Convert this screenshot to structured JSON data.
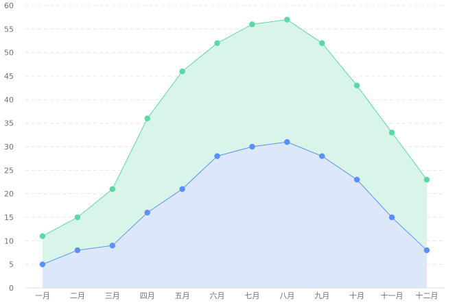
{
  "chart_data": {
    "type": "area",
    "categories": [
      "一月",
      "二月",
      "三月",
      "四月",
      "五月",
      "六月",
      "七月",
      "八月",
      "九月",
      "十月",
      "十一月",
      "十二月"
    ],
    "series": [
      {
        "values": [
          5,
          8,
          9,
          16,
          21,
          28,
          30,
          31,
          28,
          23,
          15,
          8
        ],
        "color": "#5b8ff9",
        "fill": "#dde7fa"
      },
      {
        "values": [
          11,
          15,
          21,
          36,
          46,
          52,
          56,
          57,
          52,
          43,
          33,
          23
        ],
        "color": "#5ad8a6",
        "fill": "#d9f5ea"
      }
    ],
    "ylim": [
      0,
      60
    ],
    "yticks": [
      0,
      5,
      10,
      15,
      20,
      25,
      30,
      35,
      40,
      45,
      50,
      55,
      60
    ],
    "grid": true,
    "legend": "none",
    "title": "",
    "xlabel": "",
    "ylabel": ""
  }
}
